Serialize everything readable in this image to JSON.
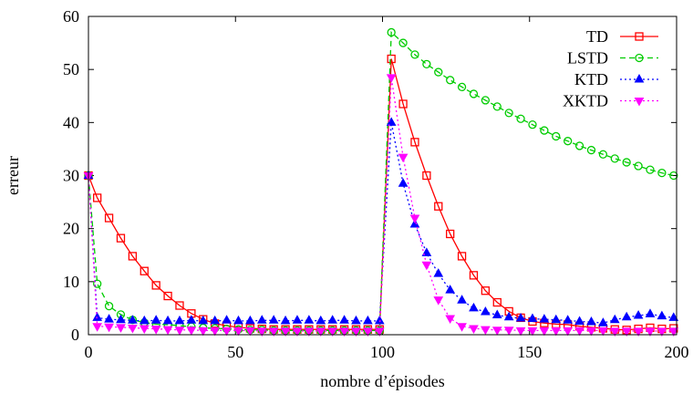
{
  "chart_data": {
    "type": "line",
    "title": "",
    "xlabel": "nombre d’épisodes",
    "ylabel": "erreur",
    "xlim": [
      0,
      200
    ],
    "ylim": [
      0,
      60
    ],
    "xticks": [
      0,
      50,
      100,
      150,
      200
    ],
    "yticks": [
      0,
      10,
      20,
      30,
      40,
      50,
      60
    ],
    "grid": false,
    "legend_position": "top-right",
    "series": [
      {
        "name": "TD",
        "color": "#ff0000",
        "dash": "solid",
        "marker": "square",
        "x": [
          0,
          3,
          7,
          11,
          15,
          19,
          23,
          27,
          31,
          35,
          39,
          43,
          47,
          51,
          55,
          59,
          63,
          67,
          71,
          75,
          79,
          83,
          87,
          91,
          95,
          99,
          103,
          107,
          111,
          115,
          119,
          123,
          127,
          131,
          135,
          139,
          143,
          147,
          151,
          155,
          159,
          163,
          167,
          171,
          175,
          179,
          183,
          187,
          191,
          195,
          199
        ],
        "y": [
          30,
          25.8,
          22,
          18.2,
          14.8,
          12,
          9.3,
          7.3,
          5.5,
          4,
          2.9,
          2.1,
          1.7,
          1.4,
          1.2,
          1.1,
          1,
          1,
          1,
          1,
          1,
          1,
          1,
          1,
          1,
          1,
          52,
          43.5,
          36.3,
          30,
          24.2,
          19,
          14.8,
          11.2,
          8.3,
          6.1,
          4.4,
          3.2,
          2.5,
          2.2,
          2,
          1.9,
          1.6,
          1.4,
          1.2,
          1,
          0.9,
          1.1,
          1.3,
          1.1,
          1.2
        ]
      },
      {
        "name": "LSTD",
        "color": "#00cc00",
        "dash": "dashed",
        "marker": "circle",
        "x": [
          0,
          3,
          7,
          11,
          15,
          19,
          23,
          27,
          31,
          35,
          39,
          43,
          47,
          51,
          55,
          59,
          63,
          67,
          71,
          75,
          79,
          83,
          87,
          91,
          95,
          99,
          103,
          107,
          111,
          115,
          119,
          123,
          127,
          131,
          135,
          139,
          143,
          147,
          151,
          155,
          159,
          163,
          167,
          171,
          175,
          179,
          183,
          187,
          191,
          195,
          199
        ],
        "y": [
          30,
          9.6,
          5.4,
          3.8,
          2.8,
          2.3,
          2,
          1.9,
          1.7,
          1.5,
          1.3,
          1.2,
          1.1,
          1,
          0.9,
          0.9,
          0.8,
          0.8,
          0.8,
          0.8,
          0.8,
          0.8,
          0.8,
          0.8,
          0.8,
          0.8,
          57,
          55,
          52.8,
          51,
          49.5,
          48,
          46.7,
          45.4,
          44.2,
          43,
          41.8,
          40.7,
          39.6,
          38.5,
          37.4,
          36.5,
          35.6,
          34.8,
          34,
          33.2,
          32.5,
          31.8,
          31.1,
          30.5,
          30
        ]
      },
      {
        "name": "KTD",
        "color": "#0000ff",
        "dash": "dotted",
        "marker": "triangle-up",
        "x": [
          0,
          3,
          7,
          11,
          15,
          19,
          23,
          27,
          31,
          35,
          39,
          43,
          47,
          51,
          55,
          59,
          63,
          67,
          71,
          75,
          79,
          83,
          87,
          91,
          95,
          99,
          103,
          107,
          111,
          115,
          119,
          123,
          127,
          131,
          135,
          139,
          143,
          147,
          151,
          155,
          159,
          163,
          167,
          171,
          175,
          179,
          183,
          187,
          191,
          195,
          199
        ],
        "y": [
          30,
          3.2,
          2.9,
          2.8,
          2.7,
          2.6,
          2.7,
          2.6,
          2.6,
          2.7,
          2.6,
          2.6,
          2.7,
          2.6,
          2.6,
          2.7,
          2.7,
          2.6,
          2.7,
          2.7,
          2.6,
          2.7,
          2.7,
          2.6,
          2.6,
          2.6,
          40,
          28.5,
          20.8,
          15.4,
          11.5,
          8.4,
          6.5,
          5,
          4.3,
          3.7,
          3.3,
          3.1,
          3,
          2.9,
          2.8,
          2.7,
          2.5,
          2.4,
          2.2,
          2.8,
          3.3,
          3.6,
          3.9,
          3.5,
          3.2
        ]
      },
      {
        "name": "XKTD",
        "color": "#ff00ff",
        "dash": "dotted",
        "marker": "triangle-down",
        "x": [
          0,
          3,
          7,
          11,
          15,
          19,
          23,
          27,
          31,
          35,
          39,
          43,
          47,
          51,
          55,
          59,
          63,
          67,
          71,
          75,
          79,
          83,
          87,
          91,
          95,
          99,
          103,
          107,
          111,
          115,
          119,
          123,
          127,
          131,
          135,
          139,
          143,
          147,
          151,
          155,
          159,
          163,
          167,
          171,
          175,
          179,
          183,
          187,
          191,
          195,
          199
        ],
        "y": [
          30,
          1.6,
          1.5,
          1.4,
          1.3,
          1.2,
          1.1,
          1,
          0.9,
          0.9,
          0.8,
          0.8,
          0.8,
          0.8,
          0.8,
          0.7,
          0.7,
          0.7,
          0.7,
          0.7,
          0.7,
          0.7,
          0.7,
          0.7,
          0.7,
          0.7,
          48.5,
          33.5,
          22,
          13.2,
          6.6,
          3.1,
          1.6,
          1.2,
          1,
          0.9,
          0.9,
          0.8,
          0.8,
          0.8,
          0.8,
          0.8,
          0.8,
          0.8,
          0.8,
          0.7,
          0.7,
          0.7,
          0.7,
          0.7,
          0.7
        ]
      }
    ]
  }
}
